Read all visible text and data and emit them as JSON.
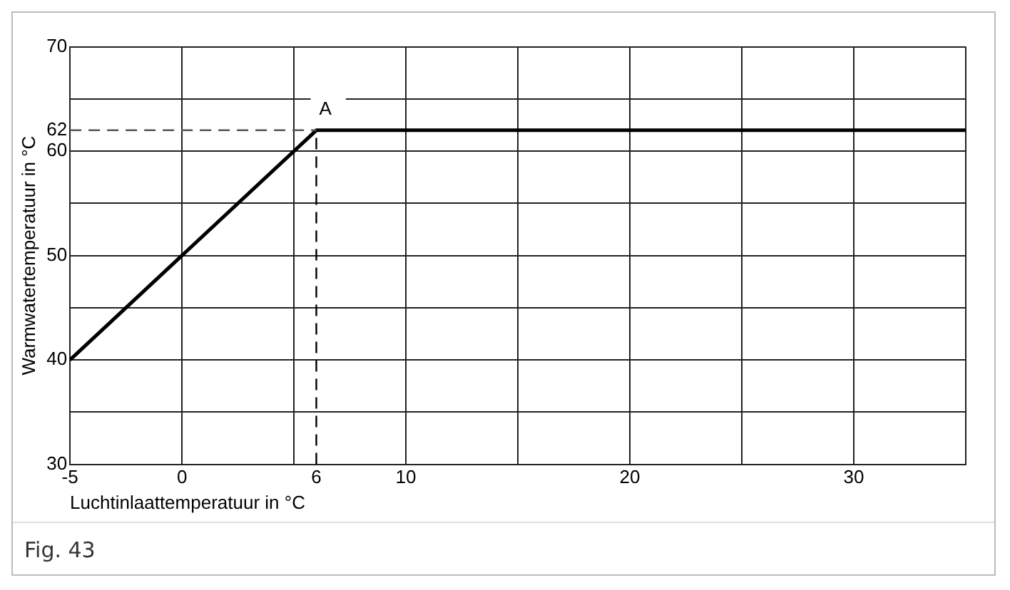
{
  "chart_data": {
    "type": "line",
    "xlabel": "Luchtinlaattemperatuur in °C",
    "ylabel": "Warmwatertemperatuur in °C",
    "x": [
      -5,
      6,
      35
    ],
    "series": [
      {
        "color": "#000000",
        "values": [
          40,
          62,
          62
        ]
      }
    ],
    "xlim": [
      -5,
      35
    ],
    "xticks": [
      -5,
      0,
      {
        "value": 5,
        "label": null
      },
      6,
      10,
      {
        "value": 15,
        "label": null
      },
      20,
      {
        "value": 25,
        "label": null
      },
      30,
      {
        "value": 35,
        "label": null
      }
    ],
    "ylim": [
      30,
      70
    ],
    "yticks": [
      30,
      {
        "value": 35,
        "label": null
      },
      40,
      {
        "value": 45,
        "label": null
      },
      50,
      {
        "value": 55,
        "label": null
      },
      60,
      62,
      {
        "value": 65,
        "label": null
      },
      70
    ],
    "grid": true,
    "legend": false,
    "marker": "none",
    "line_style": "solid",
    "ref_lines": [
      {
        "axis": "x",
        "value": 6,
        "line_style": "dashed",
        "color": "#000000"
      },
      {
        "axis": "y",
        "value": 62,
        "line_style": "dashed",
        "color": "#555555"
      }
    ],
    "annotations": [
      {
        "text": "A",
        "x": 6,
        "y": 62
      },
      "Fig. 43"
    ]
  }
}
